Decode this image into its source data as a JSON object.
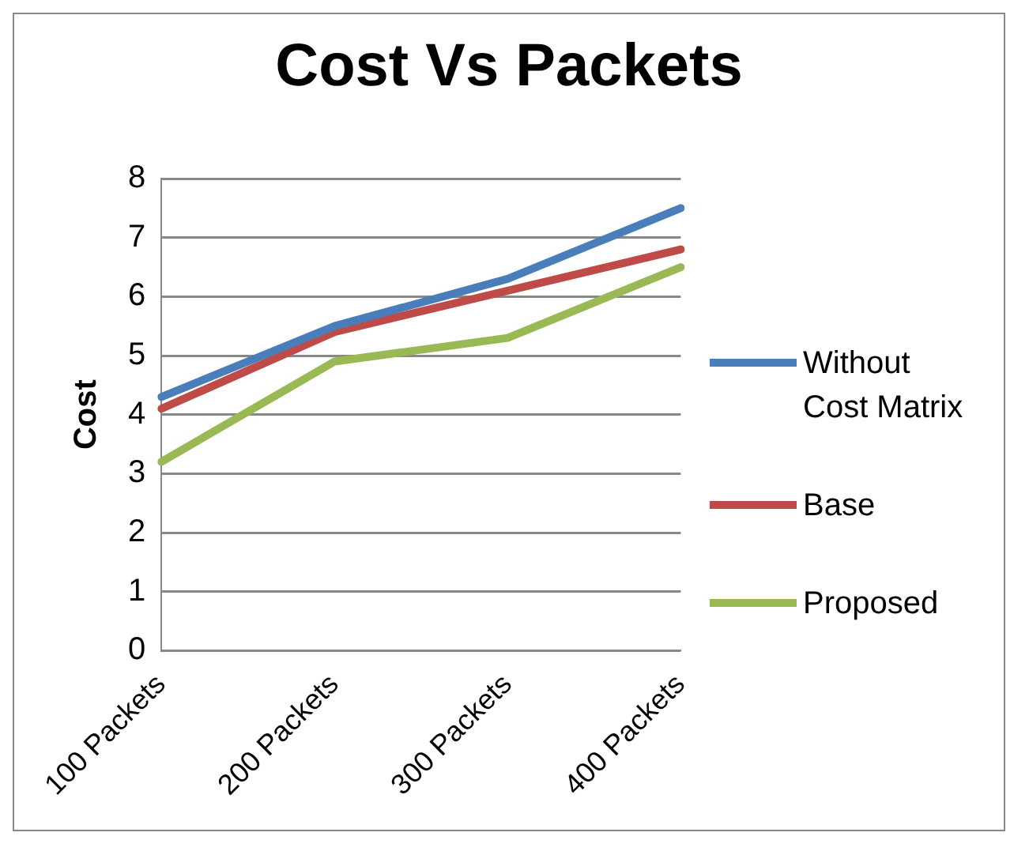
{
  "chart_data": {
    "type": "line",
    "title": "Cost Vs Packets",
    "ylabel": "Cost",
    "categories": [
      "100 Packets",
      "200 Packets",
      "300 Packets",
      "400 Packets"
    ],
    "series": [
      {
        "name": "Without Cost Matrix",
        "color": "#4a7ebb",
        "values": [
          4.3,
          5.5,
          6.3,
          7.5
        ]
      },
      {
        "name": "Base",
        "color": "#be4b48",
        "values": [
          4.1,
          5.4,
          6.1,
          6.8
        ]
      },
      {
        "name": "Proposed",
        "color": "#98b954",
        "values": [
          3.2,
          4.9,
          5.3,
          6.5
        ]
      }
    ],
    "ylim": [
      0,
      8
    ],
    "yticks": [
      0,
      1,
      2,
      3,
      4,
      5,
      6,
      7,
      8
    ],
    "grid": "y",
    "legend": "right",
    "marker": "none",
    "line_style": "solid"
  }
}
